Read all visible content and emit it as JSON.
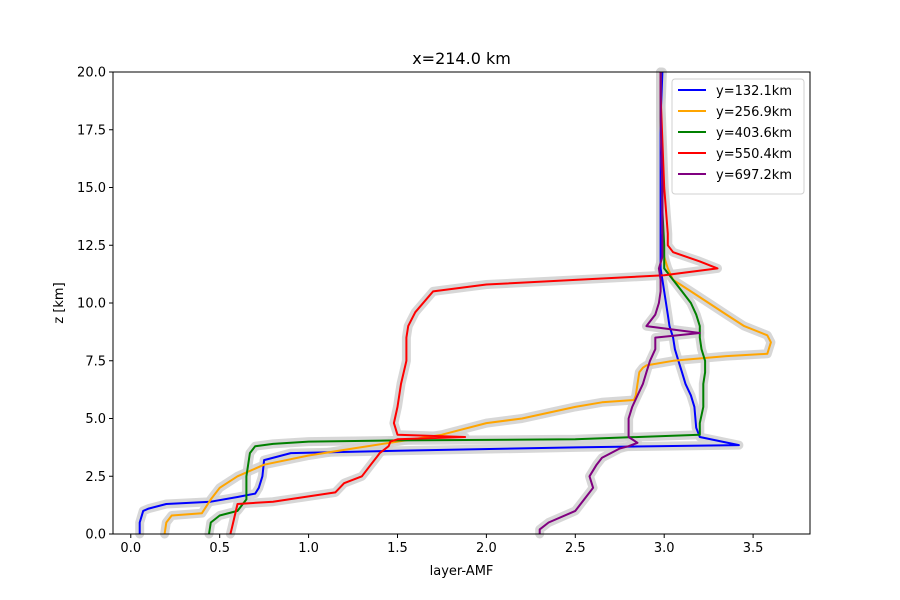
{
  "chart_data": {
    "type": "line",
    "title": "x=214.0 km",
    "xlabel": "layer-AMF",
    "ylabel": "z [km]",
    "xlim": [
      -0.1,
      3.82
    ],
    "ylim": [
      0,
      20
    ],
    "xticks": [
      0.0,
      0.5,
      1.0,
      1.5,
      2.0,
      2.5,
      3.0,
      3.5
    ],
    "xtick_labels": [
      "0.0",
      "0.5",
      "1.0",
      "1.5",
      "2.0",
      "2.5",
      "3.0",
      "3.5"
    ],
    "yticks": [
      0.0,
      2.5,
      5.0,
      7.5,
      10.0,
      12.5,
      15.0,
      17.5,
      20.0
    ],
    "ytick_labels": [
      "0.0",
      "2.5",
      "5.0",
      "7.5",
      "10.0",
      "12.5",
      "15.0",
      "17.5",
      "20.0"
    ],
    "grid": false,
    "legend_position": "top-right",
    "uncertainty_band_color": "#d3d3d3",
    "series": [
      {
        "name": "y=132.1km",
        "color": "#0000ff",
        "x": [
          0.05,
          0.05,
          0.07,
          0.1,
          0.2,
          0.45,
          0.6,
          0.7,
          0.72,
          0.74,
          0.75,
          0.9,
          1.5,
          2.5,
          3.42,
          3.2,
          3.18,
          3.17,
          3.15,
          3.12,
          3.1,
          3.08,
          3.06,
          3.05,
          3.03,
          3.02,
          3.01,
          3.0,
          2.99,
          2.98,
          2.98,
          2.98,
          2.98,
          2.98,
          2.99
        ],
        "y": [
          0,
          0.5,
          1.0,
          1.1,
          1.3,
          1.4,
          1.6,
          1.75,
          2.0,
          2.5,
          3.2,
          3.5,
          3.6,
          3.75,
          3.85,
          4.2,
          4.6,
          5.5,
          6.0,
          6.5,
          7.0,
          7.5,
          8.0,
          8.5,
          9.0,
          9.5,
          10.0,
          10.5,
          11.0,
          11.5,
          12.0,
          14.0,
          16.0,
          18.0,
          20.0
        ]
      },
      {
        "name": "y=256.9km",
        "color": "#ffa500",
        "x": [
          0.19,
          0.2,
          0.23,
          0.4,
          0.45,
          0.5,
          0.6,
          0.75,
          1.0,
          1.25,
          1.5,
          1.75,
          2.0,
          2.2,
          2.5,
          2.65,
          2.83,
          2.84,
          2.85,
          2.86,
          2.88,
          2.9,
          3.05,
          3.35,
          3.58,
          3.6,
          3.58,
          3.45,
          3.35,
          3.25,
          3.15,
          3.05,
          3.02,
          3.0,
          2.99,
          2.99,
          2.98,
          2.98
        ],
        "y": [
          0,
          0.5,
          0.8,
          0.9,
          1.5,
          2.0,
          2.5,
          3.0,
          3.4,
          3.7,
          4.0,
          4.3,
          4.8,
          5.0,
          5.5,
          5.7,
          5.8,
          6.0,
          6.5,
          7.0,
          7.2,
          7.3,
          7.5,
          7.7,
          7.8,
          8.3,
          8.6,
          9.0,
          9.5,
          10.0,
          10.5,
          11.0,
          11.5,
          12.0,
          13.0,
          15.0,
          18.0,
          20.0
        ]
      },
      {
        "name": "y=403.6km",
        "color": "#008000",
        "x": [
          0.44,
          0.45,
          0.5,
          0.6,
          0.65,
          0.65,
          0.67,
          0.7,
          0.8,
          1.0,
          1.5,
          2.5,
          3.2,
          3.2,
          3.22,
          3.22,
          3.23,
          3.23,
          3.21,
          3.2,
          3.2,
          3.18,
          3.15,
          3.1,
          3.05,
          3.0,
          3.0,
          2.99,
          2.99,
          2.98,
          2.98
        ],
        "y": [
          0,
          0.5,
          0.8,
          1.0,
          1.5,
          2.5,
          3.5,
          3.8,
          3.9,
          4.0,
          4.05,
          4.1,
          4.3,
          4.8,
          5.5,
          6.5,
          7.0,
          7.5,
          8.0,
          8.5,
          9.0,
          9.5,
          10.0,
          10.5,
          11.0,
          11.5,
          12.5,
          14.0,
          16.0,
          18.0,
          20.0
        ]
      },
      {
        "name": "y=550.4km",
        "color": "#ff0000",
        "x": [
          0.56,
          0.57,
          0.6,
          0.8,
          1.15,
          1.2,
          1.3,
          1.35,
          1.38,
          1.4,
          1.45,
          1.46,
          1.5,
          1.88,
          1.5,
          1.48,
          1.5,
          1.52,
          1.55,
          1.55,
          1.56,
          1.58,
          1.6,
          1.7,
          2.0,
          2.5,
          3.0,
          3.3,
          3.2,
          3.05,
          3.02,
          3.02,
          3.0,
          2.99,
          2.98,
          2.98
        ],
        "y": [
          0,
          0.3,
          1.3,
          1.4,
          1.8,
          2.2,
          2.5,
          3.0,
          3.3,
          3.5,
          3.8,
          4.0,
          4.1,
          4.2,
          4.3,
          4.8,
          5.5,
          6.5,
          7.5,
          8.5,
          9.0,
          9.3,
          9.6,
          10.5,
          10.8,
          11.0,
          11.2,
          11.5,
          11.8,
          12.2,
          12.5,
          13.0,
          15.0,
          17.0,
          19.0,
          20.0
        ]
      },
      {
        "name": "y=697.2km",
        "color": "#800080",
        "x": [
          2.3,
          2.3,
          2.35,
          2.5,
          2.55,
          2.6,
          2.58,
          2.62,
          2.65,
          2.7,
          2.75,
          2.8,
          2.85,
          2.8,
          2.8,
          2.82,
          2.85,
          2.88,
          2.9,
          2.92,
          2.95,
          2.95,
          3.2,
          2.9,
          2.95,
          2.97,
          2.98,
          2.98,
          2.97,
          2.99,
          2.99,
          2.98,
          2.98
        ],
        "y": [
          0,
          0.2,
          0.5,
          1.0,
          1.5,
          2.0,
          2.5,
          3.0,
          3.3,
          3.5,
          3.7,
          3.8,
          3.95,
          4.2,
          5.0,
          5.5,
          6.0,
          6.5,
          7.0,
          7.5,
          8.0,
          8.5,
          8.7,
          9.0,
          9.5,
          10.0,
          10.5,
          11.0,
          11.5,
          12.0,
          15.0,
          18.0,
          20.0
        ]
      }
    ]
  }
}
